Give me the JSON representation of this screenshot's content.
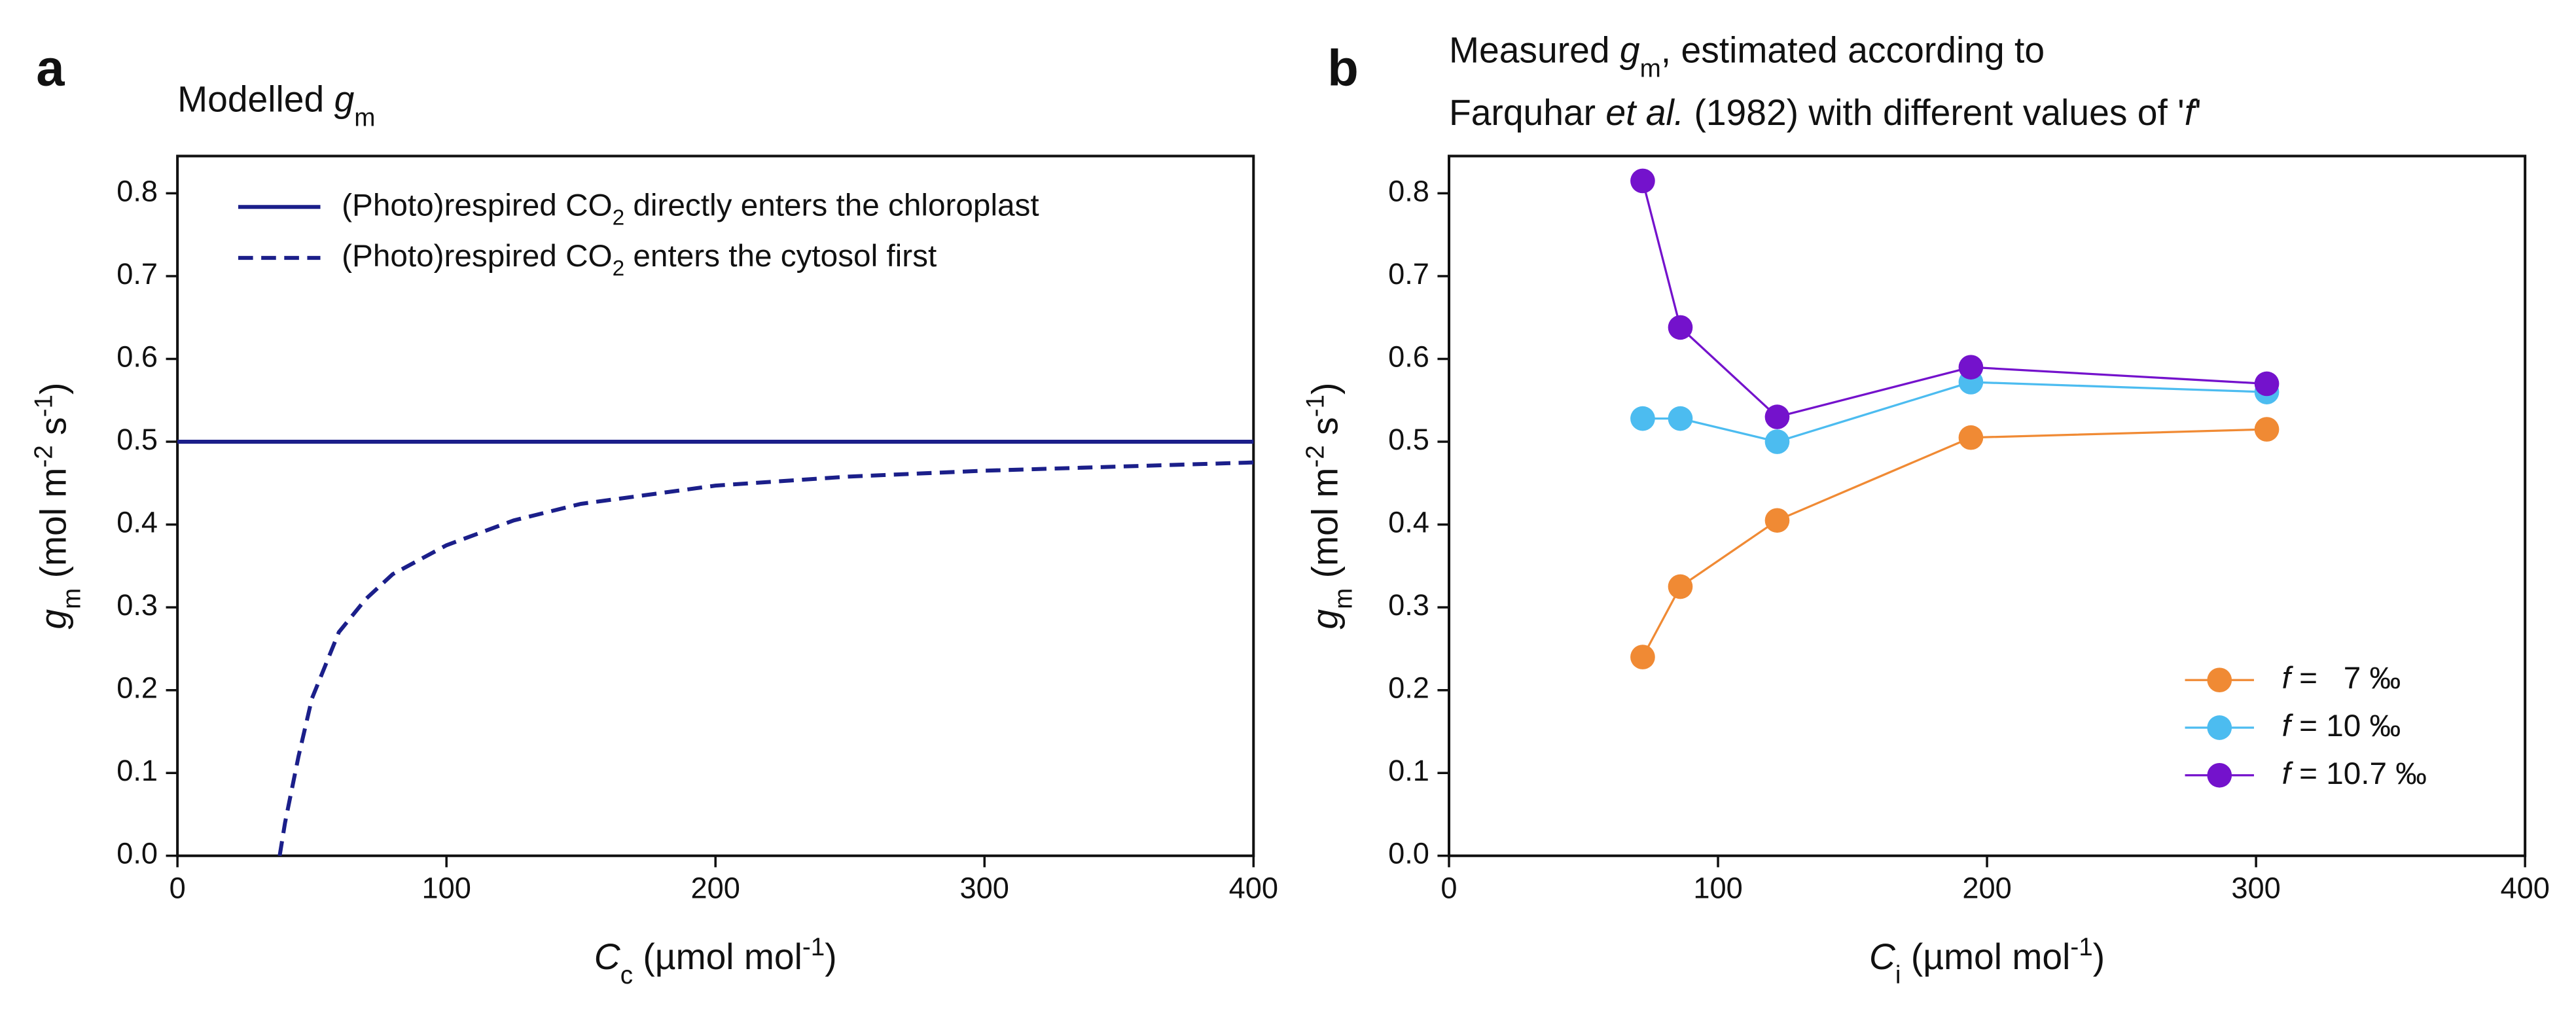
{
  "chart_data": [
    {
      "type": "line",
      "panel_label": "a",
      "title": [
        "Modelled ",
        "g",
        "m"
      ],
      "x_label": [
        "C",
        "c",
        " (µmol mol",
        "-1",
        ")"
      ],
      "y_label": [
        "g",
        "m",
        " (mol m",
        "-2",
        " s",
        "-1",
        ")"
      ],
      "xlim": [
        0,
        400
      ],
      "xticks": [
        0,
        100,
        200,
        300,
        400
      ],
      "ylim": [
        0,
        0.845
      ],
      "yticks": [
        {
          "value": 0,
          "label": "0.0"
        },
        0.1,
        0.2,
        0.3,
        0.4,
        0.5,
        0.6,
        0.7,
        0.8
      ],
      "legend": "upper left",
      "markers": false,
      "series": [
        {
          "name": [
            "(Photo)respired CO",
            "2",
            " directly enters the chloroplast"
          ],
          "color": "#1b1f8a",
          "dash": false,
          "x": [
            0,
            400
          ],
          "values": [
            0.5,
            0.5
          ]
        },
        {
          "name": [
            "(Photo)respired CO",
            "2",
            " enters the cytosol first"
          ],
          "color": "#1b1f8a",
          "dash": true,
          "x": [
            38,
            40,
            45,
            50,
            60,
            70,
            80,
            100,
            125,
            150,
            200,
            250,
            300,
            350,
            400
          ],
          "values": [
            0,
            0.04,
            0.12,
            0.19,
            0.27,
            0.31,
            0.34,
            0.375,
            0.405,
            0.425,
            0.447,
            0.458,
            0.465,
            0.47,
            0.475
          ]
        }
      ]
    },
    {
      "type": "line",
      "panel_label": "b",
      "title": [
        "Measured ",
        "g",
        "m",
        ", estimated according to"
      ],
      "subtitle": [
        "Farquhar ",
        "et al.",
        " (1982) with different values of '",
        "f",
        "'"
      ],
      "x_label": [
        "C",
        "i",
        " (µmol mol",
        "-1",
        ")"
      ],
      "y_label": [
        "g",
        "m",
        " (mol m",
        "-2",
        " s",
        "-1",
        ")"
      ],
      "xlim": [
        0,
        400
      ],
      "xticks": [
        0,
        100,
        200,
        300,
        400
      ],
      "ylim": [
        0,
        0.845
      ],
      "yticks": [
        {
          "value": 0,
          "label": "0.0"
        },
        0.1,
        0.2,
        0.3,
        0.4,
        0.5,
        0.6,
        0.7,
        0.8
      ],
      "legend": "lower right",
      "markers": true,
      "series": [
        {
          "name": [
            "f",
            " =   7 ‰"
          ],
          "color": "#f08a34",
          "dash": false,
          "x": [
            72,
            86,
            122,
            194,
            304
          ],
          "values": [
            0.24,
            0.325,
            0.405,
            0.505,
            0.515
          ]
        },
        {
          "name": [
            "f",
            " = 10 ‰"
          ],
          "color": "#4cbcf0",
          "dash": false,
          "x": [
            72,
            86,
            122,
            194,
            304
          ],
          "values": [
            0.528,
            0.528,
            0.5,
            0.572,
            0.56
          ]
        },
        {
          "name": [
            "f",
            " = 10.7 ‰"
          ],
          "color": "#7412cc",
          "dash": false,
          "x": [
            72,
            86,
            122,
            194,
            304
          ],
          "values": [
            0.815,
            0.638,
            0.53,
            0.59,
            0.57
          ]
        }
      ]
    }
  ]
}
